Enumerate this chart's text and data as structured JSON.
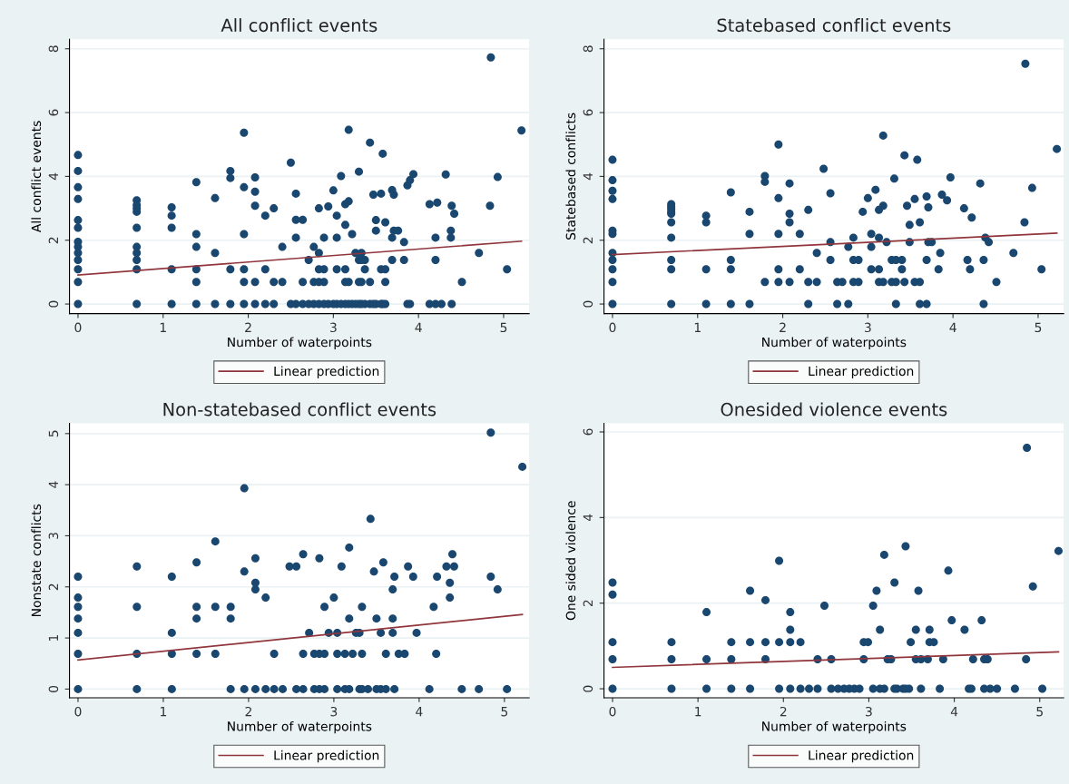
{
  "chart_data": [
    {
      "type": "scatter",
      "title": "All conflict events",
      "xlabel": "Number of waterpoints",
      "ylabel": "All conflict events",
      "xlim": [
        -0.1,
        5.3
      ],
      "xticks": [
        0,
        1,
        2,
        3,
        4,
        5
      ],
      "ylim": [
        -0.3,
        8.3
      ],
      "yticks": [
        0,
        2,
        4,
        6,
        8
      ],
      "grid": "y",
      "legend": "bottom",
      "series": [
        {
          "color": "#1a476f",
          "marker": "circle",
          "x": [
            0,
            0,
            0,
            0,
            0,
            0,
            0,
            0,
            0,
            0,
            0,
            0,
            0,
            0.69,
            0.69,
            0.69,
            0.69,
            0.69,
            0.69,
            0.69,
            0.69,
            0.69,
            0.69,
            1.1,
            1.1,
            1.1,
            1.1,
            1.1,
            1.39,
            1.39,
            1.39,
            1.39,
            1.39,
            1.39,
            1.61,
            1.61,
            1.61,
            1.79,
            1.79,
            1.79,
            1.79,
            1.95,
            1.95,
            1.95,
            1.95,
            1.95,
            1.95,
            2.08,
            2.08,
            2.08,
            2.08,
            2.08,
            2.2,
            2.2,
            2.2,
            2.3,
            2.3,
            2.3,
            2.4,
            2.4,
            2.5,
            2.5,
            2.56,
            2.56,
            2.56,
            2.56,
            2.64,
            2.64,
            2.64,
            2.71,
            2.71,
            2.77,
            2.77,
            2.77,
            2.83,
            2.83,
            2.83,
            2.83,
            2.83,
            2.89,
            2.89,
            2.89,
            2.89,
            2.94,
            2.94,
            3.0,
            3.0,
            3.04,
            3.04,
            3.04,
            3.04,
            3.09,
            3.09,
            3.14,
            3.14,
            3.14,
            3.14,
            3.14,
            3.18,
            3.18,
            3.18,
            3.18,
            3.22,
            3.22,
            3.26,
            3.26,
            3.3,
            3.3,
            3.3,
            3.3,
            3.33,
            3.33,
            3.33,
            3.33,
            3.37,
            3.37,
            3.37,
            3.43,
            3.43,
            3.43,
            3.47,
            3.47,
            3.5,
            3.5,
            3.5,
            3.56,
            3.56,
            3.56,
            3.58,
            3.58,
            3.61,
            3.61,
            3.61,
            3.61,
            3.69,
            3.69,
            3.69,
            3.71,
            3.71,
            3.76,
            3.83,
            3.83,
            3.87,
            3.87,
            3.9,
            3.9,
            3.94,
            4.13,
            4.13,
            4.2,
            4.2,
            4.2,
            4.22,
            4.27,
            4.32,
            4.38,
            4.38,
            4.39,
            4.39,
            4.42,
            4.51,
            4.71,
            4.84,
            4.85,
            4.93,
            5.04,
            5.21
          ],
          "values": [
            4.67,
            4.17,
            3.66,
            3.29,
            2.63,
            2.39,
            1.95,
            1.79,
            1.6,
            1.38,
            1.09,
            0.69,
            0,
            3.25,
            3.1,
            3.0,
            2.89,
            2.39,
            1.79,
            1.6,
            1.38,
            1.09,
            0,
            3.03,
            2.77,
            2.39,
            1.09,
            0,
            3.82,
            2.19,
            1.79,
            1.09,
            0.69,
            0,
            3.32,
            1.6,
            0,
            4.17,
            3.95,
            1.09,
            0,
            5.37,
            3.66,
            2.19,
            1.09,
            0.69,
            0,
            3.97,
            3.52,
            3.08,
            0.69,
            0,
            2.77,
            1.09,
            0,
            3.0,
            0.69,
            0,
            1.79,
            0.69,
            4.43,
            0,
            3.46,
            2.64,
            2.08,
            0,
            2.64,
            0.69,
            0,
            1.38,
            0,
            1.79,
            0.69,
            0,
            3.0,
            1.6,
            1.09,
            0.69,
            0,
            2.08,
            1.09,
            0.69,
            0,
            3.06,
            0,
            3.56,
            0,
            2.77,
            2.08,
            1.09,
            0,
            4.01,
            0,
            3.13,
            2.48,
            1.09,
            0.69,
            0,
            5.46,
            3.22,
            0.69,
            0,
            2.19,
            0,
            1.6,
            0,
            4.15,
            1.38,
            0.69,
            0,
            1.6,
            1.38,
            0.69,
            0,
            1.38,
            1.09,
            0,
            5.06,
            0.69,
            0,
            3.43,
            0,
            2.63,
            2.3,
            0,
            3.46,
            1.09,
            0,
            4.71,
            0,
            2.56,
            1.09,
            0.69,
            0,
            3.57,
            2.08,
            1.38,
            3.43,
            2.3,
            2.3,
            1.94,
            1.38,
            3.72,
            0,
            3.88,
            0,
            4.07,
            3.13,
            0,
            2.08,
            1.38,
            0,
            3.18,
            0,
            4.06,
            2.3,
            2.08,
            3.08,
            0,
            2.83,
            0.69,
            1.6,
            3.08,
            7.73,
            3.98,
            1.09,
            5.44
          ]
        },
        {
          "type": "line",
          "marker": "none",
          "name": "Linear prediction",
          "color": "#90353b",
          "x": [
            0,
            5.21
          ],
          "values": [
            0.91,
            1.97
          ]
        }
      ]
    },
    {
      "type": "scatter",
      "title": "Statebased conflict events",
      "xlabel": "Number of waterpoints",
      "ylabel": "Statebased conflicts",
      "xlim": [
        -0.1,
        5.3
      ],
      "xticks": [
        0,
        1,
        2,
        3,
        4,
        5
      ],
      "ylim": [
        -0.3,
        8.3
      ],
      "yticks": [
        0,
        2,
        4,
        6,
        8
      ],
      "grid": "y",
      "legend": "bottom",
      "series": [
        {
          "color": "#1a476f",
          "marker": "circle",
          "x": [
            0,
            0,
            0,
            0,
            0,
            0,
            0,
            0,
            0,
            0,
            0,
            0.69,
            0.69,
            0.69,
            0.69,
            0.69,
            0.69,
            0.69,
            0.69,
            0.69,
            0.69,
            1.1,
            1.1,
            1.1,
            1.1,
            1.39,
            1.39,
            1.39,
            1.39,
            1.61,
            1.61,
            1.61,
            1.79,
            1.79,
            1.79,
            1.95,
            1.95,
            1.95,
            1.95,
            1.95,
            2.08,
            2.08,
            2.08,
            2.08,
            2.2,
            2.2,
            2.3,
            2.3,
            2.3,
            2.4,
            2.4,
            2.48,
            2.56,
            2.56,
            2.56,
            2.64,
            2.64,
            2.7,
            2.77,
            2.77,
            2.83,
            2.83,
            2.83,
            2.89,
            2.89,
            2.94,
            3.0,
            3.04,
            3.04,
            3.04,
            3.09,
            3.13,
            3.13,
            3.13,
            3.13,
            3.18,
            3.18,
            3.18,
            3.22,
            3.28,
            3.28,
            3.31,
            3.33,
            3.33,
            3.33,
            3.4,
            3.4,
            3.43,
            3.43,
            3.46,
            3.49,
            3.49,
            3.55,
            3.55,
            3.58,
            3.61,
            3.61,
            3.61,
            3.69,
            3.69,
            3.69,
            3.71,
            3.71,
            3.75,
            3.83,
            3.85,
            3.87,
            3.93,
            3.97,
            4.13,
            4.17,
            4.2,
            4.22,
            4.32,
            4.36,
            4.36,
            4.38,
            4.42,
            4.51,
            4.71,
            4.84,
            4.85,
            4.93,
            5.04,
            5.22
          ],
          "values": [
            4.52,
            3.88,
            3.55,
            3.29,
            2.3,
            2.2,
            1.6,
            1.38,
            1.09,
            0.69,
            0,
            3.13,
            3.05,
            2.98,
            2.89,
            2.83,
            2.56,
            2.08,
            1.38,
            1.09,
            0,
            2.77,
            2.56,
            1.09,
            0,
            3.5,
            1.38,
            1.09,
            0,
            2.89,
            2.2,
            0,
            4.01,
            3.83,
            0.69,
            5.0,
            3.32,
            2.2,
            1.09,
            0.69,
            3.78,
            2.83,
            2.56,
            0.69,
            2.2,
            1.09,
            2.95,
            0.69,
            0,
            1.6,
            0.69,
            4.24,
            3.47,
            1.94,
            1.38,
            0.69,
            0,
            0.69,
            1.79,
            0,
            2.08,
            1.38,
            0.69,
            1.38,
            0.69,
            2.89,
            3.32,
            2.2,
            1.79,
            1.09,
            3.58,
            2.95,
            2.08,
            1.09,
            0.69,
            5.28,
            3.08,
            0.69,
            1.94,
            1.38,
            0.69,
            3.93,
            1.38,
            0.69,
            0,
            1.38,
            1.09,
            4.66,
            0.69,
            3.08,
            2.48,
            1.94,
            3.29,
            0.69,
            4.52,
            2.56,
            0.69,
            0,
            3.37,
            1.38,
            0,
            3.03,
            1.94,
            1.94,
            1.09,
            1.6,
            3.43,
            3.25,
            3.97,
            3.0,
            1.38,
            1.09,
            2.71,
            3.78,
            1.38,
            0,
            2.08,
            1.94,
            0.69,
            1.6,
            2.56,
            7.53,
            3.64,
            1.09,
            4.86
          ]
        },
        {
          "type": "line",
          "marker": "none",
          "name": "Linear prediction",
          "color": "#90353b",
          "x": [
            0,
            5.22
          ],
          "values": [
            1.55,
            2.22
          ]
        }
      ]
    },
    {
      "type": "scatter",
      "title": "Non-statebased conflict events",
      "xlabel": "Number of waterpoints",
      "ylabel": "Nonstate conflicts",
      "xlim": [
        -0.1,
        5.29
      ],
      "xticks": [
        0,
        1,
        2,
        3,
        4,
        5
      ],
      "ylim": [
        -0.17,
        5.2
      ],
      "yticks": [
        0,
        1,
        2,
        3,
        4,
        5
      ],
      "grid": "y",
      "legend": "bottom",
      "series": [
        {
          "color": "#1a476f",
          "marker": "circle",
          "x": [
            0,
            0,
            0,
            0,
            0,
            0,
            0,
            0.69,
            0.69,
            0.69,
            0.69,
            1.1,
            1.1,
            1.1,
            1.1,
            1.39,
            1.39,
            1.39,
            1.39,
            1.61,
            1.61,
            1.61,
            1.79,
            1.79,
            1.79,
            1.95,
            1.95,
            1.95,
            2.08,
            2.08,
            2.08,
            2.08,
            2.2,
            2.2,
            2.3,
            2.3,
            2.4,
            2.48,
            2.56,
            2.56,
            2.64,
            2.64,
            2.64,
            2.71,
            2.77,
            2.77,
            2.83,
            2.83,
            2.83,
            2.89,
            2.89,
            2.89,
            2.94,
            3.0,
            3.04,
            3.04,
            3.04,
            3.09,
            3.13,
            3.13,
            3.18,
            3.18,
            3.18,
            3.22,
            3.26,
            3.3,
            3.3,
            3.33,
            3.33,
            3.33,
            3.4,
            3.43,
            3.47,
            3.5,
            3.5,
            3.55,
            3.55,
            3.58,
            3.61,
            3.61,
            3.69,
            3.69,
            3.69,
            3.71,
            3.71,
            3.76,
            3.83,
            3.87,
            3.93,
            3.97,
            4.12,
            4.17,
            4.2,
            4.21,
            4.32,
            4.36,
            4.36,
            4.39,
            4.41,
            4.5,
            4.7,
            4.84,
            4.84,
            4.92,
            5.03,
            5.21
          ],
          "values": [
            2.2,
            1.79,
            1.61,
            1.38,
            1.1,
            0.69,
            0,
            2.4,
            1.61,
            0.69,
            0,
            2.2,
            1.1,
            0.69,
            0,
            2.48,
            1.61,
            1.38,
            0.69,
            2.89,
            1.61,
            0.69,
            1.61,
            1.38,
            0,
            3.93,
            2.3,
            0,
            2.56,
            2.08,
            1.95,
            0,
            1.79,
            0,
            0.69,
            0,
            0,
            2.4,
            2.4,
            0,
            2.64,
            0.69,
            0,
            1.1,
            0.69,
            0,
            2.56,
            0.69,
            0,
            1.61,
            0.69,
            0,
            1.1,
            1.79,
            1.1,
            0.69,
            0,
            2.4,
            0.69,
            0,
            2.77,
            1.38,
            0,
            0.69,
            1.1,
            1.1,
            0,
            1.61,
            0.69,
            0,
            0,
            3.33,
            2.3,
            1.38,
            0,
            1.1,
            0,
            2.48,
            0.69,
            0,
            1.95,
            1.38,
            1.1,
            2.2,
            0,
            0.69,
            0.69,
            2.4,
            2.2,
            1.1,
            0,
            1.61,
            0.69,
            2.2,
            2.4,
            2.08,
            1.79,
            2.64,
            2.4,
            0,
            0,
            2.2,
            5.02,
            1.95,
            0,
            4.35
          ]
        },
        {
          "type": "line",
          "marker": "none",
          "name": "Linear prediction",
          "color": "#90353b",
          "x": [
            0,
            5.21
          ],
          "values": [
            0.57,
            1.46
          ]
        }
      ]
    },
    {
      "type": "scatter",
      "title": "Onesided violence events",
      "xlabel": "Number of waterpoints",
      "ylabel": "One sided violence",
      "xlim": [
        -0.1,
        5.28
      ],
      "xticks": [
        0,
        1,
        2,
        3,
        4,
        5
      ],
      "ylim": [
        -0.21,
        6.2
      ],
      "yticks": [
        0,
        2,
        4,
        6
      ],
      "grid": "y",
      "legend": "bottom",
      "series": [
        {
          "color": "#1a476f",
          "marker": "circle",
          "x": [
            0,
            0,
            0,
            0,
            0,
            0.69,
            0.69,
            0.69,
            1.1,
            1.1,
            1.1,
            1.39,
            1.39,
            1.39,
            1.61,
            1.61,
            1.61,
            1.79,
            1.79,
            1.79,
            1.95,
            1.95,
            1.95,
            2.08,
            2.08,
            2.08,
            2.08,
            2.2,
            2.2,
            2.3,
            2.4,
            2.4,
            2.48,
            2.56,
            2.56,
            2.64,
            2.71,
            2.77,
            2.83,
            2.89,
            2.94,
            2.94,
            2.99,
            3.05,
            3.05,
            3.09,
            3.13,
            3.13,
            3.18,
            3.18,
            3.22,
            3.26,
            3.3,
            3.3,
            3.33,
            3.4,
            3.43,
            3.43,
            3.47,
            3.49,
            3.55,
            3.55,
            3.58,
            3.61,
            3.61,
            3.69,
            3.71,
            3.71,
            3.76,
            3.83,
            3.87,
            3.93,
            3.97,
            4.12,
            4.17,
            4.2,
            4.22,
            4.32,
            4.35,
            4.35,
            4.39,
            4.42,
            4.5,
            4.71,
            4.84,
            4.85,
            4.92,
            5.03,
            5.22
          ],
          "values": [
            2.48,
            2.2,
            1.09,
            0.69,
            0,
            1.09,
            0.69,
            0,
            1.79,
            0.69,
            0,
            1.09,
            0.69,
            0,
            2.29,
            1.09,
            0,
            2.07,
            1.09,
            0.69,
            2.99,
            1.09,
            0,
            1.79,
            1.38,
            1.09,
            0,
            1.09,
            0,
            0,
            0.69,
            0,
            1.94,
            0.69,
            0,
            0,
            0,
            0,
            0,
            0,
            1.09,
            0.69,
            1.09,
            1.94,
            0,
            2.29,
            1.38,
            0,
            3.13,
            0,
            0.69,
            0.69,
            2.48,
            0,
            0,
            0,
            3.33,
            0,
            0,
            1.09,
            1.38,
            0.69,
            2.29,
            0.69,
            0,
            0.69,
            1.38,
            1.09,
            1.09,
            0,
            0.69,
            2.76,
            1.6,
            1.38,
            0,
            0,
            0.69,
            1.6,
            0.69,
            0,
            0.69,
            0,
            0,
            0,
            0.69,
            5.63,
            2.39,
            0,
            3.22
          ]
        },
        {
          "type": "line",
          "marker": "none",
          "name": "Linear prediction",
          "color": "#90353b",
          "x": [
            0,
            5.22
          ],
          "values": [
            0.5,
            0.86
          ]
        }
      ]
    }
  ]
}
